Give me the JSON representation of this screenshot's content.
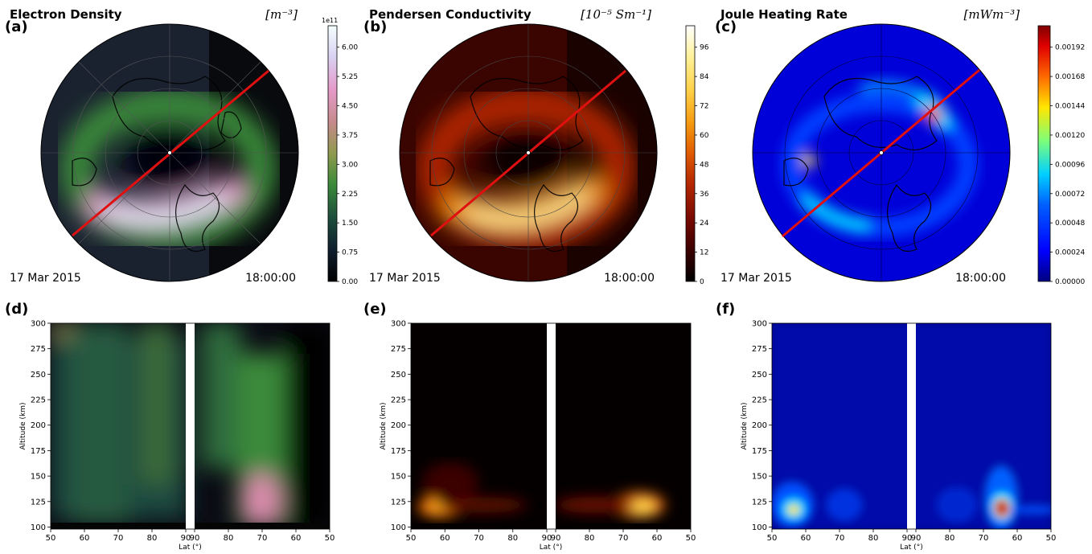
{
  "panels_top": [
    {
      "letter": "(a)",
      "title": "Electron Density",
      "unit": "[m⁻³]",
      "date": "17 Mar 2015",
      "time": "18:00:00",
      "cbar_ticks": [
        "0.00",
        "0.75",
        "1.50",
        "2.25",
        "3.00",
        "3.75",
        "4.50",
        "5.25",
        "6.00"
      ],
      "cbar_exp": "1e11"
    },
    {
      "letter": "(b)",
      "title": "Pendersen Conductivity",
      "unit": "[10⁻⁵ Sm⁻¹]",
      "date": "17 Mar 2015",
      "time": "18:00:00",
      "cbar_ticks": [
        "0",
        "12",
        "24",
        "36",
        "48",
        "60",
        "72",
        "84",
        "96"
      ]
    },
    {
      "letter": "(c)",
      "title": "Joule Heating Rate",
      "unit": "[mWm⁻³]",
      "date": "17 Mar 2015",
      "time": "18:00:00",
      "cbar_ticks": [
        "0.00000",
        "0.00024",
        "0.00048",
        "0.00072",
        "0.00096",
        "0.00120",
        "0.00144",
        "0.00168",
        "0.00192"
      ]
    }
  ],
  "panels_bottom": [
    {
      "letter": "(d)"
    },
    {
      "letter": "(e)"
    },
    {
      "letter": "(f)"
    }
  ],
  "chart_data": {
    "type": "heatmap",
    "ylabel": "Altitude (km)",
    "xlabel": "Lat (°)",
    "yticks": [
      100,
      125,
      150,
      175,
      200,
      225,
      250,
      275,
      300
    ],
    "xticks_left": [
      50,
      60,
      70,
      80,
      90
    ],
    "xticks_right": [
      90,
      80,
      70,
      60,
      50
    ],
    "ylim": [
      98,
      300
    ],
    "colors": {
      "ne": [
        "#000000",
        "#0f1d2c",
        "#1d4d3c",
        "#3b8a3a",
        "#8f9a4e",
        "#c58a8a",
        "#e59ac9",
        "#d9d2f2",
        "#f5ffff"
      ],
      "sp": [
        "#000000",
        "#3a0000",
        "#7a0a00",
        "#b32600",
        "#e05a00",
        "#f59a10",
        "#ffd24a",
        "#fff29a",
        "#ffffff"
      ],
      "jh": [
        "#00007f",
        "#0000ff",
        "#0060ff",
        "#00d0ff",
        "#7dff7a",
        "#ffe600",
        "#ff6a00",
        "#e00000",
        "#7f0000"
      ]
    }
  }
}
